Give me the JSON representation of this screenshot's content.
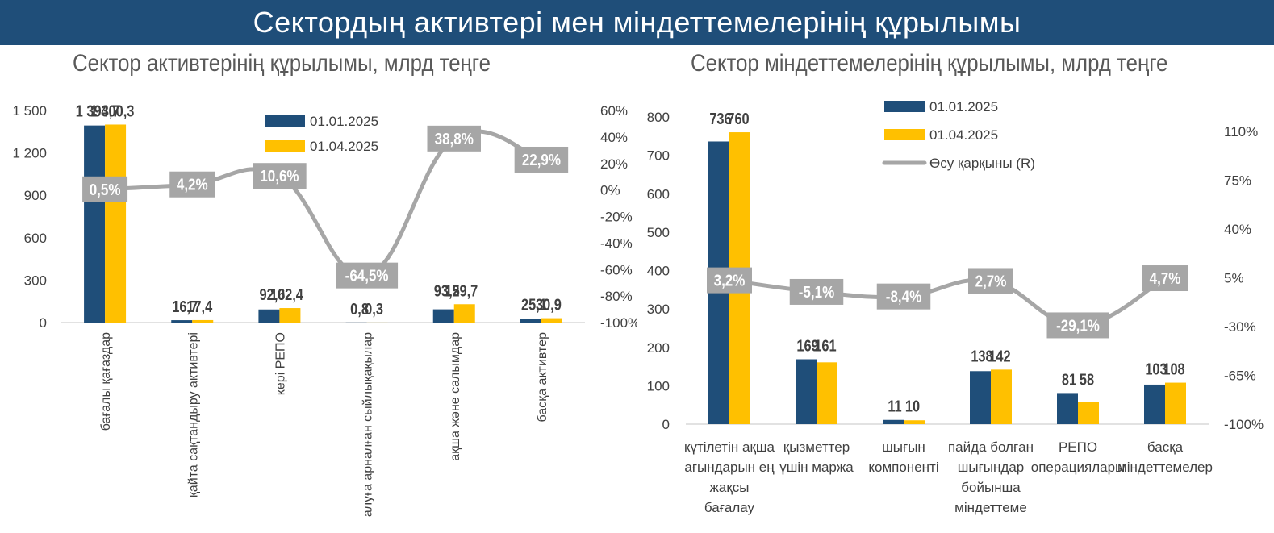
{
  "banner": {
    "title": "Сектордың активтері мен міндеттемелерінің құрылымы"
  },
  "chart_data": [
    {
      "type": "bar",
      "title": "Сектор активтерінің құрылымы, млрд теңге",
      "categories": [
        "бағалы қағаздар",
        "қайта сақтандыру активтері",
        "кері РЕПО",
        "алуға арналған сыйлықақылар",
        "ақша және салымдар",
        "басқа активтер"
      ],
      "category_labels": [
        [
          "бағалы қағаздар"
        ],
        [
          "қайта сақтандыру активтері"
        ],
        [
          "кері РЕПО"
        ],
        [
          "алуға арналған сыйлықақылар"
        ],
        [
          "ақша және салымдар"
        ],
        [
          "басқа активтер"
        ]
      ],
      "series": [
        {
          "name": "01.01.2025",
          "color": "#1f4e79",
          "values": [
            1393.7,
            16.7,
            92.6,
            0.8,
            93.5,
            25.1
          ],
          "labels": [
            "1 393,7",
            "16,7",
            "92,6",
            "0,8",
            "93,5",
            "25,1"
          ]
        },
        {
          "name": "01.04.2025",
          "color": "#ffc000",
          "values": [
            1400.3,
            17.4,
            102.4,
            0.3,
            129.7,
            30.9
          ],
          "labels": [
            "1 400,3",
            "17,4",
            "102,4",
            "0,3",
            "129,7",
            "30,9"
          ]
        }
      ],
      "growth": {
        "name": "",
        "color": "#a6a6a6",
        "values": [
          0.5,
          4.2,
          10.6,
          -64.5,
          38.8,
          22.9
        ],
        "labels": [
          "0,5%",
          "4,2%",
          "10,6%",
          "-64,5%",
          "38,8%",
          "22,9%"
        ]
      },
      "ylim": [
        0,
        1500
      ],
      "yticks": [
        0,
        300,
        600,
        900,
        1200,
        1500
      ],
      "ytick_labels": [
        "0",
        "300",
        "600",
        "900",
        "1 200",
        "1 500"
      ],
      "y2lim": [
        -100,
        60
      ],
      "y2ticks": [
        -100,
        -80,
        -60,
        -40,
        -20,
        0,
        20,
        40,
        60
      ],
      "y2tick_labels": [
        "-100%",
        "-80%",
        "-60%",
        "-40%",
        "-20%",
        "0%",
        "20%",
        "40%",
        "60%"
      ],
      "legend": "top-center",
      "grid": false
    },
    {
      "type": "bar",
      "title": "Сектор міндеттемелерінің құрылымы, млрд теңге",
      "categories": [
        "күтілетін ақша ағындарын ең жақсы бағалау",
        "қызметтер үшін маржа",
        "шығын компоненті",
        "пайда болған шығындар бойынша міндеттеме",
        "РЕПО операциялары",
        "басқа міндеттемелер"
      ],
      "category_labels": [
        [
          "күтілетін ақша",
          "ағындарын ең",
          "жақсы",
          "бағалау"
        ],
        [
          "қызметтер",
          "үшін маржа"
        ],
        [
          "шығын",
          "компоненті"
        ],
        [
          "пайда болған",
          "шығындар",
          "бойынша",
          "міндеттеме"
        ],
        [
          "РЕПО",
          "операциялары"
        ],
        [
          "басқа",
          "міндеттемелер"
        ]
      ],
      "series": [
        {
          "name": "01.01.2025",
          "color": "#1f4e79",
          "values": [
            736,
            169,
            11,
            138,
            81,
            103
          ],
          "labels": [
            "736",
            "169",
            "11",
            "138",
            "81",
            "103"
          ]
        },
        {
          "name": "01.04.2025",
          "color": "#ffc000",
          "values": [
            760,
            161,
            10,
            142,
            58,
            108
          ],
          "labels": [
            "760",
            "161",
            "10",
            "142",
            "58",
            "108"
          ]
        }
      ],
      "growth": {
        "name": "Өсу қарқыны (R)",
        "color": "#a6a6a6",
        "values": [
          3.2,
          -5.1,
          -8.4,
          2.7,
          -29.1,
          4.7
        ],
        "labels": [
          "3,2%",
          "-5,1%",
          "-8,4%",
          "2,7%",
          "-29,1%",
          "4,7%"
        ]
      },
      "ylim": [
        0,
        800
      ],
      "yticks": [
        0,
        100,
        200,
        300,
        400,
        500,
        600,
        700,
        800
      ],
      "ytick_labels": [
        "0",
        "100",
        "200",
        "300",
        "400",
        "500",
        "600",
        "700",
        "800"
      ],
      "y2lim": [
        -100,
        110
      ],
      "y2ticks": [
        -100,
        -65,
        -30,
        5,
        40,
        75,
        110
      ],
      "y2tick_labels": [
        "-100%",
        "-65%",
        "-30%",
        "5%",
        "40%",
        "75%",
        "110%"
      ],
      "legend": "top-center",
      "grid": false
    }
  ]
}
